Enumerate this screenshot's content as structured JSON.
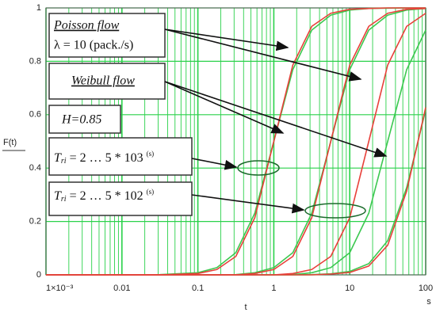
{
  "chart_data": {
    "type": "line",
    "y_label": "F(t)",
    "x_label": "t",
    "x_unit": "s",
    "x_log": true,
    "grid": true,
    "grid_color": "#2ad14a",
    "x": [
      0.001,
      0.01,
      0.0316,
      0.1,
      0.178,
      0.316,
      0.562,
      1,
      1.78,
      3.16,
      5.62,
      10,
      17.8,
      31.6,
      56.2,
      100
    ],
    "series": [
      {
        "color": "#3cc850",
        "values": [
          0,
          0,
          0.001,
          0.008,
          0.027,
          0.083,
          0.231,
          0.5,
          0.769,
          0.917,
          0.973,
          0.992,
          0.998,
          0.999,
          1,
          1
        ]
      },
      {
        "color": "#3cc850",
        "values": [
          0,
          0,
          0,
          0,
          0,
          0.001,
          0.008,
          0.027,
          0.083,
          0.231,
          0.5,
          0.769,
          0.917,
          0.973,
          0.992,
          0.998
        ]
      },
      {
        "color": "#3cc850",
        "values": [
          0,
          0,
          0,
          0,
          0,
          0,
          0,
          0,
          0.001,
          0.008,
          0.027,
          0.083,
          0.231,
          0.5,
          0.769,
          0.917
        ]
      },
      {
        "color": "#3cc850",
        "values": [
          0,
          0,
          0,
          0,
          0,
          0,
          0,
          0,
          0,
          0.001,
          0.004,
          0.013,
          0.042,
          0.128,
          0.327,
          0.618
        ]
      },
      {
        "color": "#e8403a",
        "values": [
          0,
          0,
          0,
          0.005,
          0.02,
          0.069,
          0.214,
          0.5,
          0.786,
          0.931,
          0.98,
          0.995,
          0.998,
          1,
          1,
          1
        ]
      },
      {
        "color": "#e8403a",
        "values": [
          0,
          0,
          0,
          0,
          0,
          0,
          0.005,
          0.02,
          0.069,
          0.214,
          0.5,
          0.786,
          0.931,
          0.98,
          0.995,
          0.998
        ]
      },
      {
        "color": "#e8403a",
        "values": [
          0,
          0,
          0,
          0,
          0,
          0,
          0,
          0,
          0.005,
          0.02,
          0.069,
          0.214,
          0.5,
          0.786,
          0.931,
          0.98
        ]
      },
      {
        "color": "#e8403a",
        "values": [
          0,
          0,
          0,
          0,
          0,
          0,
          0,
          0,
          0,
          0,
          0.003,
          0.009,
          0.033,
          0.111,
          0.314,
          0.627
        ]
      }
    ],
    "xlim": [
      0.001,
      100
    ],
    "xticks": [
      {
        "value": 0.001,
        "label": "1×10⁻³"
      },
      0.01,
      0.1,
      1,
      10,
      100
    ],
    "ylim": [
      0,
      1
    ],
    "yticks": [
      0,
      0.2,
      0.4,
      0.6,
      0.8,
      1
    ],
    "annotations": [
      {
        "text": "Poisson flow"
      },
      {
        "text": "λ = 10 (pack./s)"
      },
      {
        "text": "Weibull flow"
      },
      {
        "text": "H=0.85"
      },
      {
        "text": "T",
        "sub": "ri",
        "rest": " = 2 … 5 * 103 ",
        "sup": "(s)"
      },
      {
        "text": "T",
        "sub": "ri",
        "rest": " = 2 … 5 * 102 ",
        "sup": "(s)"
      }
    ]
  }
}
